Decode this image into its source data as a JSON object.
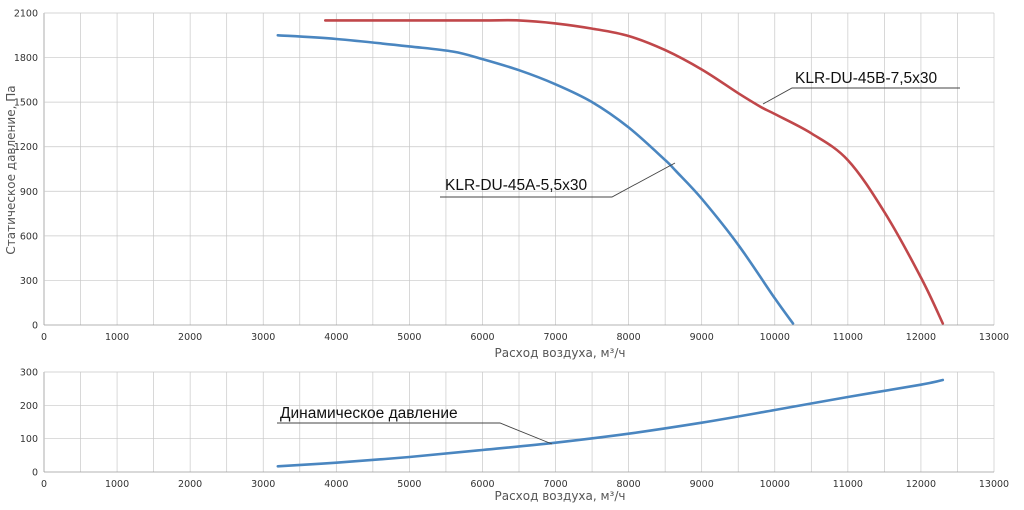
{
  "chart_data": [
    {
      "type": "line",
      "xlabel": "Расход воздуха, м³/ч",
      "ylabel": "Статическое давление, Па",
      "xlim": [
        0,
        13000
      ],
      "ylim": [
        0,
        2100
      ],
      "xticks": [
        "0",
        "1000",
        "2000",
        "3000",
        "4000",
        "5000",
        "6000",
        "7000",
        "8000",
        "9000",
        "10000",
        "11000",
        "12000",
        "13000"
      ],
      "yticks": [
        "0",
        "300",
        "600",
        "900",
        "1200",
        "1500",
        "1800",
        "2100"
      ],
      "grid": true,
      "series": [
        {
          "name": "KLR-DU-45A-5,5x30",
          "color": "#4a86c0",
          "points": [
            [
              3200,
              1950
            ],
            [
              4000,
              1925
            ],
            [
              5000,
              1875
            ],
            [
              5600,
              1840
            ],
            [
              6000,
              1790
            ],
            [
              6500,
              1715
            ],
            [
              7000,
              1620
            ],
            [
              7500,
              1500
            ],
            [
              8000,
              1330
            ],
            [
              8500,
              1110
            ],
            [
              8650,
              1035
            ],
            [
              9000,
              850
            ],
            [
              9500,
              540
            ],
            [
              10000,
              180
            ],
            [
              10250,
              10
            ]
          ]
        },
        {
          "name": "KLR-DU-45B-7,5x30",
          "color": "#c0474a",
          "points": [
            [
              3850,
              2050
            ],
            [
              4500,
              2050
            ],
            [
              5000,
              2050
            ],
            [
              6000,
              2050
            ],
            [
              6500,
              2050
            ],
            [
              7000,
              2030
            ],
            [
              7500,
              1995
            ],
            [
              8000,
              1945
            ],
            [
              8500,
              1850
            ],
            [
              9000,
              1720
            ],
            [
              9500,
              1560
            ],
            [
              9800,
              1470
            ],
            [
              10000,
              1420
            ],
            [
              10500,
              1290
            ],
            [
              11000,
              1110
            ],
            [
              11500,
              760
            ],
            [
              12000,
              320
            ],
            [
              12300,
              10
            ]
          ]
        }
      ],
      "annotations": [
        {
          "text": "KLR-DU-45A-5,5x30",
          "series": 0
        },
        {
          "text": "KLR-DU-45B-7,5x30",
          "series": 1
        }
      ]
    },
    {
      "type": "line",
      "xlabel": "Расход воздуха, м³/ч",
      "ylabel": "",
      "xlim": [
        0,
        13000
      ],
      "ylim": [
        0,
        300
      ],
      "xticks": [
        "0",
        "1000",
        "2000",
        "3000",
        "4000",
        "5000",
        "6000",
        "7000",
        "8000",
        "9000",
        "10000",
        "11000",
        "12000",
        "13000"
      ],
      "yticks": [
        "0",
        "100",
        "200",
        "300"
      ],
      "grid": true,
      "series": [
        {
          "name": "Динамическое давление",
          "color": "#4a86c0",
          "points": [
            [
              3200,
              17
            ],
            [
              4000,
              28
            ],
            [
              5000,
              45
            ],
            [
              6000,
              66
            ],
            [
              7000,
              88
            ],
            [
              8000,
              115
            ],
            [
              9000,
              148
            ],
            [
              10000,
              186
            ],
            [
              11000,
              225
            ],
            [
              12000,
              262
            ],
            [
              12300,
              276
            ]
          ]
        }
      ],
      "annotations": [
        {
          "text": "Динамическое давление",
          "series": 0
        }
      ]
    }
  ]
}
